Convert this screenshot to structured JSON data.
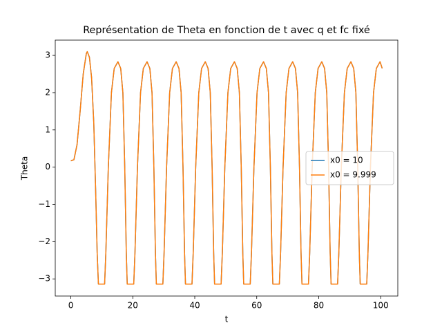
{
  "chart_data": {
    "type": "line",
    "title": "Représentation de Theta en fonction de t avec q et fc fixé",
    "xlabel": "t",
    "ylabel": "Theta",
    "x": [
      0,
      1,
      2,
      3,
      4,
      5,
      5.3,
      6,
      6.7,
      7.4,
      8,
      8.5,
      8.9,
      10.9,
      11.3,
      12.1,
      13.1,
      14.0,
      15.2,
      16.1,
      16.8,
      17.4,
      17.9,
      18.2,
      20.3,
      20.7,
      21.5,
      22.5,
      23.4,
      24.6,
      25.5,
      26.2,
      26.8,
      27.3,
      27.6,
      29.7,
      30.1,
      30.9,
      31.9,
      32.8,
      34.0,
      34.9,
      35.6,
      36.2,
      36.7,
      37.0,
      39.1,
      39.5,
      40.3,
      41.3,
      42.2,
      43.4,
      44.3,
      45.0,
      45.6,
      46.1,
      46.4,
      48.5,
      48.9,
      49.7,
      50.7,
      51.6,
      52.8,
      53.7,
      54.4,
      55.0,
      55.5,
      55.8,
      57.9,
      58.3,
      59.1,
      60.1,
      61.0,
      62.2,
      63.1,
      63.8,
      64.4,
      64.9,
      65.2,
      67.3,
      67.7,
      68.5,
      69.5,
      70.4,
      71.6,
      72.5,
      73.2,
      73.8,
      74.3,
      74.6,
      76.7,
      77.1,
      77.9,
      78.9,
      79.8,
      81.0,
      81.9,
      82.6,
      83.2,
      83.7,
      84.0,
      86.1,
      86.5,
      87.3,
      88.3,
      89.2,
      90.4,
      91.3,
      92.0,
      92.6,
      93.1,
      93.4,
      95.5,
      95.9,
      96.7,
      97.7,
      98.6,
      99.8,
      100.5
    ],
    "series": [
      {
        "name": "x0 = 10",
        "color": "#1f77b4",
        "values": [
          0.17,
          0.2,
          0.6,
          1.5,
          2.5,
          3.05,
          3.1,
          2.95,
          2.4,
          1.2,
          -0.6,
          -2.3,
          -3.14,
          -3.14,
          -2.3,
          0,
          2.0,
          2.65,
          2.83,
          2.65,
          2.0,
          0,
          -2.3,
          -3.14,
          -3.14,
          -2.3,
          0,
          2.0,
          2.65,
          2.83,
          2.65,
          2.0,
          0,
          -2.3,
          -3.14,
          -3.14,
          -2.3,
          0,
          2.0,
          2.65,
          2.83,
          2.65,
          2.0,
          0,
          -2.3,
          -3.14,
          -3.14,
          -2.3,
          0,
          2.0,
          2.65,
          2.83,
          2.65,
          2.0,
          0,
          -2.3,
          -3.14,
          -3.14,
          -2.3,
          0,
          2.0,
          2.65,
          2.83,
          2.65,
          2.0,
          0,
          -2.3,
          -3.14,
          -3.14,
          -2.3,
          0,
          2.0,
          2.65,
          2.83,
          2.65,
          2.0,
          0,
          -2.3,
          -3.14,
          -3.14,
          -2.3,
          0,
          2.0,
          2.65,
          2.83,
          2.65,
          2.0,
          0,
          -2.3,
          -3.14,
          -3.14,
          -2.3,
          0,
          2.0,
          2.65,
          2.83,
          2.65,
          2.0,
          0,
          -2.3,
          -3.14,
          -3.14,
          -2.3,
          0,
          2.0,
          2.65,
          2.83,
          2.65,
          2.0,
          0,
          -2.3,
          -3.14,
          -3.14,
          -2.3,
          0,
          2.0,
          2.65,
          2.83,
          2.65
        ]
      },
      {
        "name": "x0 = 9.999",
        "color": "#ff7f0e",
        "values": [
          0.17,
          0.2,
          0.6,
          1.5,
          2.5,
          3.05,
          3.1,
          2.95,
          2.4,
          1.2,
          -0.6,
          -2.3,
          -3.14,
          -3.14,
          -2.3,
          0,
          2.0,
          2.65,
          2.83,
          2.65,
          2.0,
          0,
          -2.3,
          -3.14,
          -3.14,
          -2.3,
          0,
          2.0,
          2.65,
          2.83,
          2.65,
          2.0,
          0,
          -2.3,
          -3.14,
          -3.14,
          -2.3,
          0,
          2.0,
          2.65,
          2.83,
          2.65,
          2.0,
          0,
          -2.3,
          -3.14,
          -3.14,
          -2.3,
          0,
          2.0,
          2.65,
          2.83,
          2.65,
          2.0,
          0,
          -2.3,
          -3.14,
          -3.14,
          -2.3,
          0,
          2.0,
          2.65,
          2.83,
          2.65,
          2.0,
          0,
          -2.3,
          -3.14,
          -3.14,
          -2.3,
          0,
          2.0,
          2.65,
          2.83,
          2.65,
          2.0,
          0,
          -2.3,
          -3.14,
          -3.14,
          -2.3,
          0,
          2.0,
          2.65,
          2.83,
          2.65,
          2.0,
          0,
          -2.3,
          -3.14,
          -3.14,
          -2.3,
          0,
          2.0,
          2.65,
          2.83,
          2.65,
          2.0,
          0,
          -2.3,
          -3.14,
          -3.14,
          -2.3,
          0,
          2.0,
          2.65,
          2.83,
          2.65,
          2.0,
          0,
          -2.3,
          -3.14,
          -3.14,
          -2.3,
          0,
          2.0,
          2.65,
          2.83,
          2.65
        ]
      }
    ],
    "xlim": [
      -5.03,
      105.53
    ],
    "xticks": [
      0,
      20,
      40,
      60,
      80,
      100
    ],
    "ylim": [
      -3.46,
      3.41
    ],
    "yticks": [
      {
        "value": -3,
        "label": "−3"
      },
      {
        "value": -2,
        "label": "−2"
      },
      {
        "value": -1,
        "label": "−1"
      },
      0,
      1,
      2,
      3
    ],
    "grid": false,
    "legend": "center right"
  }
}
